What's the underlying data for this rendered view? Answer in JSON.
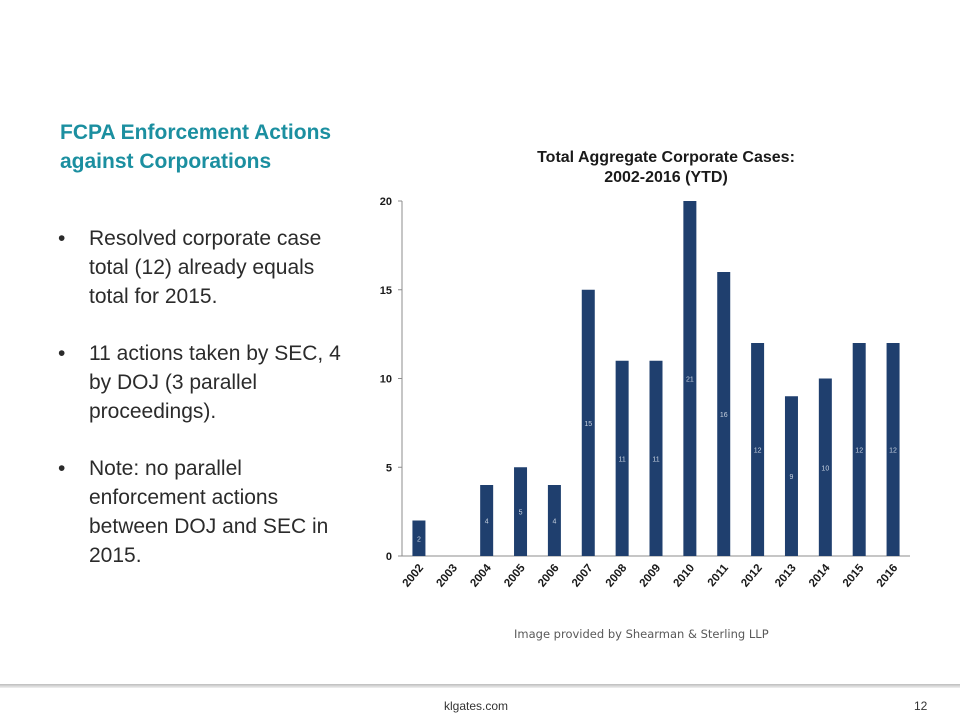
{
  "slide": {
    "title": "FCPA Enforcement Actions against Corporations",
    "bullets": [
      "Resolved corporate case total (12) already equals total for 2015.",
      "11 actions taken by SEC, 4 by DOJ (3 parallel proceedings).",
      "Note: no parallel enforcement actions between DOJ and SEC in 2015."
    ],
    "bullet_symbol": "•",
    "credit": "Image provided by Shearman & Sterling LLP"
  },
  "footer": {
    "site": "klgates.com",
    "page": "12"
  },
  "colors": {
    "accent": "#1b8fa0",
    "bar": "#1f3f6e",
    "bar_label": "#c8d2e0"
  },
  "chart_data": {
    "type": "bar",
    "title_lines": [
      "Total Aggregate Corporate Cases:",
      "2002-2016 (YTD)"
    ],
    "categories": [
      "2002",
      "2003",
      "2004",
      "2005",
      "2006",
      "2007",
      "2008",
      "2009",
      "2010",
      "2011",
      "2012",
      "2013",
      "2014",
      "2015",
      "2016"
    ],
    "values": [
      2,
      0,
      4,
      5,
      4,
      15,
      11,
      11,
      21,
      16,
      12,
      9,
      10,
      12,
      12
    ],
    "data_labels": [
      "2",
      "",
      "4",
      "5",
      "4",
      "15",
      "11",
      "11",
      "21",
      "16",
      "12",
      "9",
      "10",
      "12",
      "12"
    ],
    "yticks": [
      0,
      5,
      10,
      15,
      20
    ],
    "ylim": [
      0,
      20
    ],
    "grid": false,
    "legend": "none",
    "xlabel": "",
    "ylabel": ""
  }
}
